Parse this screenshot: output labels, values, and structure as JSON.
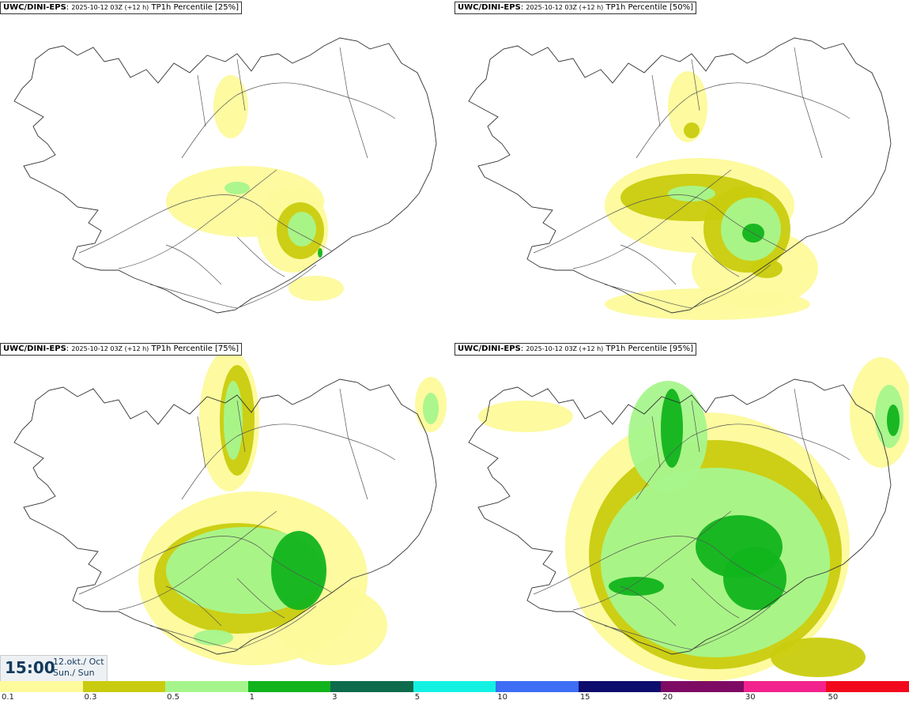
{
  "panels": [
    {
      "model": "UWC/DINI-EPS",
      "run": "2025-10-12 03Z (+12 h)",
      "field": "TP1h Percentile [25%]"
    },
    {
      "model": "UWC/DINI-EPS",
      "run": "2025-10-12 03Z (+12 h)",
      "field": "TP1h Percentile [50%]"
    },
    {
      "model": "UWC/DINI-EPS",
      "run": "2025-10-12 03Z (+12 h)",
      "field": "TP1h Percentile [75%]"
    },
    {
      "model": "UWC/DINI-EPS",
      "run": "2025-10-12 03Z (+12 h)",
      "field": "TP1h Percentile [95%]"
    }
  ],
  "valid_time": {
    "time": "15:00",
    "date_line1": "12.okt./ Oct",
    "date_line2": "Sun./ Sun"
  },
  "legend": {
    "colors": [
      "#fdfa9b",
      "#c9cc0e",
      "#a6f58c",
      "#11b41c",
      "#0e6b4b",
      "#13f2e2",
      "#3d6ef5",
      "#0d0d6e",
      "#7e0b63",
      "#f2238c",
      "#f2081c"
    ],
    "labels": [
      "0.1",
      "0.3",
      "0.5",
      "1",
      "3",
      "5",
      "10",
      "15",
      "20",
      "30",
      "50"
    ]
  }
}
